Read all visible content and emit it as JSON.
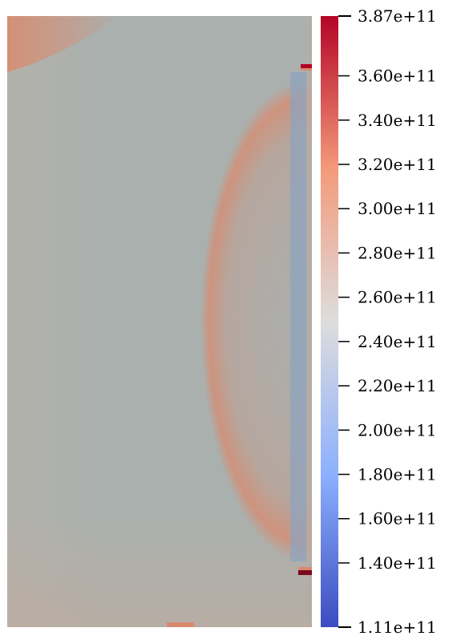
{
  "colorbar": {
    "min_label": "1.11e+11",
    "max_label": "3.87e+11",
    "ticks": [
      {
        "value": 360,
        "label": "3.60e+11"
      },
      {
        "value": 340,
        "label": "3.40e+11"
      },
      {
        "value": 320,
        "label": "3.20e+11"
      },
      {
        "value": 300,
        "label": "3.00e+11"
      },
      {
        "value": 280,
        "label": "2.80e+11"
      },
      {
        "value": 260,
        "label": "2.60e+11"
      },
      {
        "value": 240,
        "label": "2.40e+11"
      },
      {
        "value": 220,
        "label": "2.20e+11"
      },
      {
        "value": 200,
        "label": "2.00e+11"
      },
      {
        "value": 180,
        "label": "1.80e+11"
      },
      {
        "value": 160,
        "label": "1.60e+11"
      },
      {
        "value": 140,
        "label": "1.40e+11"
      }
    ],
    "range": [
      111,
      387
    ],
    "colormap": "cool-to-warm",
    "colors": {
      "low": "#3b4cc0",
      "mid": "#dddddd",
      "high": "#b40426"
    }
  },
  "field": {
    "background_color": "#aab0ae",
    "warm_color": "#d98a6e",
    "cool_color": "#8fa3bd"
  }
}
